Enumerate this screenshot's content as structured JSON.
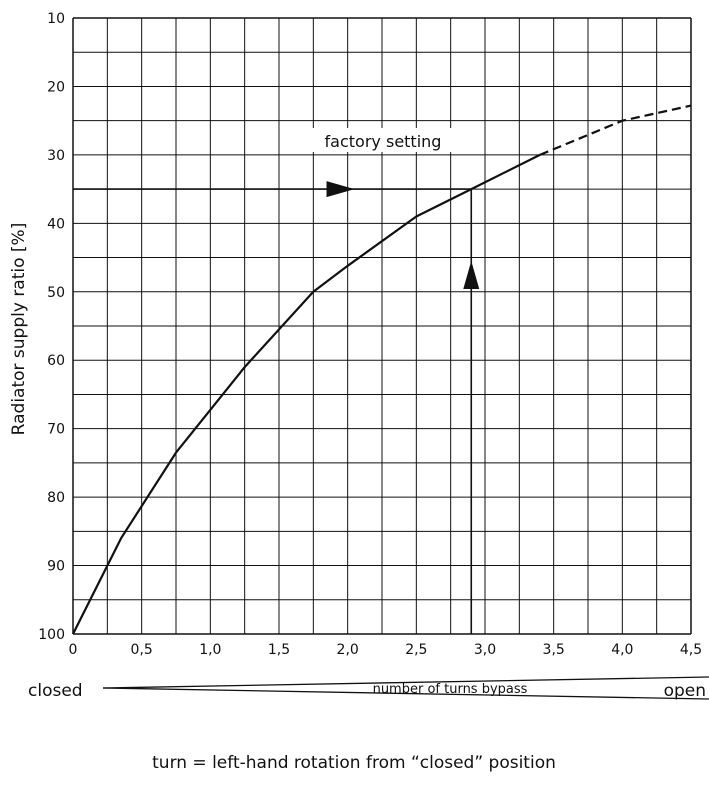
{
  "chart_data": {
    "type": "line",
    "ylabel": "Radiator supply ratio [%]",
    "x_ticks": [
      "0",
      "0,5",
      "1,0",
      "1,5",
      "2,0",
      "2,5",
      "3,0",
      "3,5",
      "4,0",
      "4,5"
    ],
    "y_ticks": [
      "10",
      "20",
      "30",
      "40",
      "50",
      "60",
      "70",
      "80",
      "90",
      "100"
    ],
    "xlim": [
      0,
      4.5
    ],
    "ylim": [
      10,
      100
    ],
    "y_inverted": true,
    "grid": true,
    "series": [
      {
        "style": "solid",
        "points": [
          [
            0,
            100
          ],
          [
            0.35,
            86
          ],
          [
            0.75,
            73.5
          ],
          [
            1.25,
            61
          ],
          [
            1.75,
            50
          ],
          [
            2.0,
            46.2
          ],
          [
            2.5,
            39
          ],
          [
            2.9,
            35
          ],
          [
            3.4,
            30
          ]
        ]
      },
      {
        "style": "dashed",
        "points": [
          [
            3.4,
            30
          ],
          [
            3.7,
            27.5
          ],
          [
            4.0,
            25
          ],
          [
            4.5,
            22.8
          ]
        ]
      }
    ],
    "annotations": {
      "factory_setting_label": "factory setting",
      "factory_setting_y": 35,
      "factory_setting_x": 2.9
    }
  },
  "scale": {
    "closed_label": "closed",
    "center_label": "number of turns bypass",
    "open_label": "open"
  },
  "footnote": "turn = left-hand rotation from “closed” position"
}
